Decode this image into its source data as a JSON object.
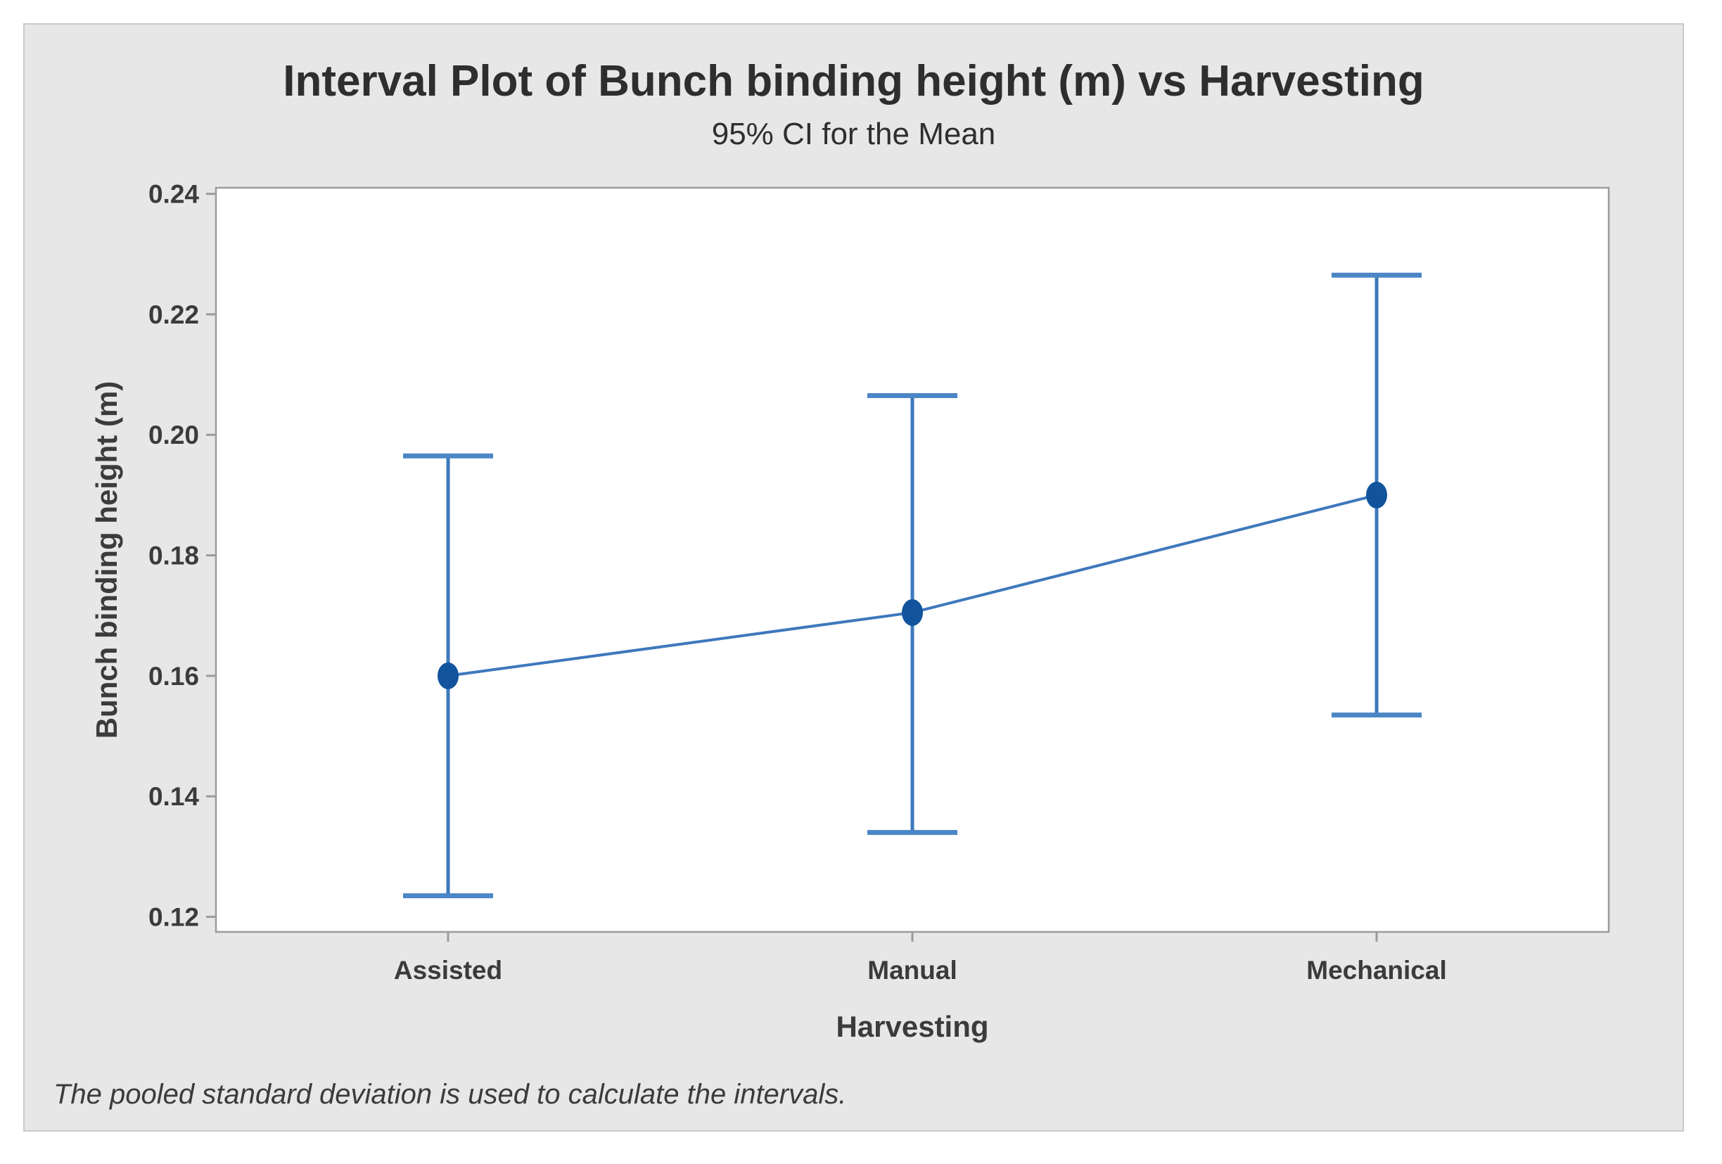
{
  "figure": {
    "title": "Interval Plot of Bunch binding height (m) vs Harvesting",
    "subtitle": "95% CI for the Mean",
    "xlabel": "Harvesting",
    "ylabel": "Bunch binding height (m)",
    "footnote": "The pooled standard deviation is used to calculate the intervals."
  },
  "chart_data": {
    "type": "line",
    "subtype": "interval-plot-95ci",
    "title": "Interval Plot of Bunch binding height (m) vs Harvesting",
    "subtitle": "95% CI for the Mean",
    "xlabel": "Harvesting",
    "ylabel": "Bunch binding height (m)",
    "categories": [
      "Assisted",
      "Manual",
      "Mechanical"
    ],
    "series": [
      {
        "name": "Mean",
        "values": [
          0.16,
          0.1705,
          0.19
        ]
      },
      {
        "name": "95% CI lower",
        "values": [
          0.1235,
          0.134,
          0.1535
        ]
      },
      {
        "name": "95% CI upper",
        "values": [
          0.1965,
          0.2065,
          0.2265
        ]
      }
    ],
    "yticks": [
      0.12,
      0.14,
      0.16,
      0.18,
      0.2,
      0.22,
      0.24
    ],
    "ytick_labels": [
      "0.12",
      "0.14",
      "0.16",
      "0.18",
      "0.20",
      "0.22",
      "0.24"
    ],
    "ylim": [
      0.1175,
      0.241
    ],
    "grid": false,
    "legend": null,
    "footnote": "The pooled standard deviation is used to calculate the intervals."
  },
  "style": {
    "interval_color": "#3E78BC",
    "cap_color": "#4B86C6",
    "marker_color": "#12539D",
    "panel_bg": "#E7E7E7",
    "panel_border": "#C9C9C9",
    "plot_bg": "#FFFFFF",
    "axis_color": "#9B9B9B",
    "text_color": "#3B3B3B",
    "title_color": "#2E2E2E"
  }
}
